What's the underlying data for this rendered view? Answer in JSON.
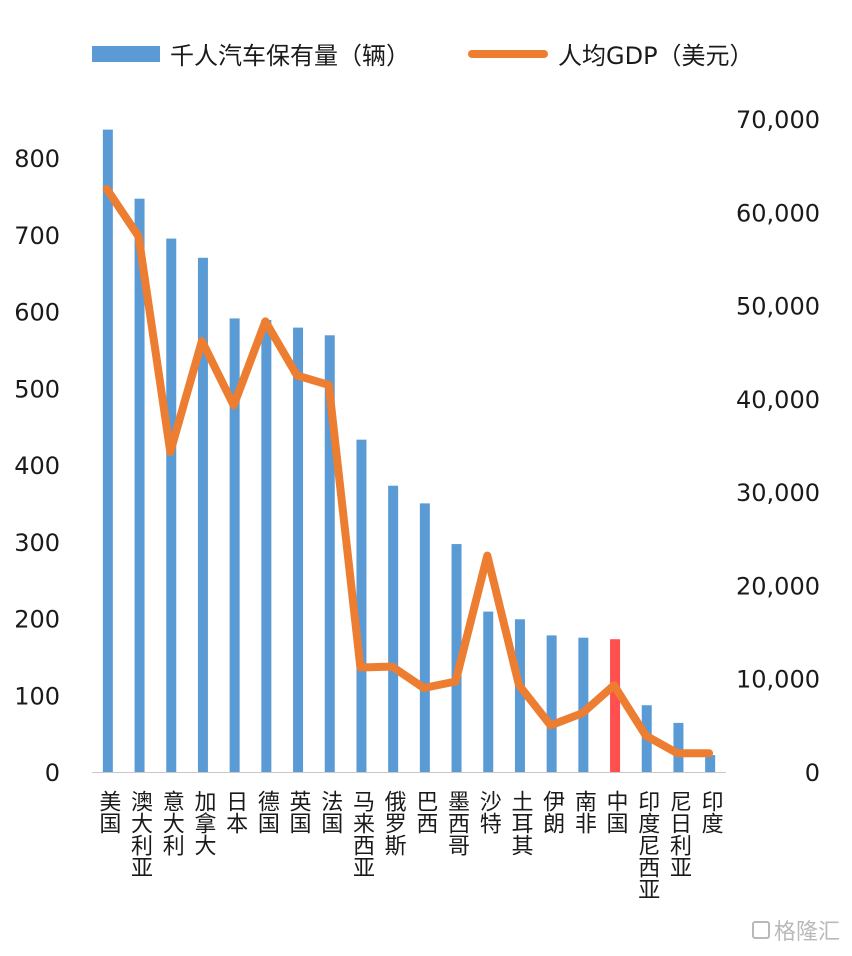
{
  "chart_data": {
    "type": "bar+line",
    "legend": {
      "bar_label": "千人汽车保有量（辆）",
      "line_label": "人均GDP（美元）"
    },
    "categories": [
      "美国",
      "澳大利亚",
      "意大利",
      "加拿大",
      "日本",
      "德国",
      "英国",
      "法国",
      "马来西亚",
      "俄罗斯",
      "巴西",
      "墨西哥",
      "沙特",
      "土耳其",
      "伊朗",
      "南非",
      "中国",
      "印度尼西亚",
      "尼日利亚",
      "印度"
    ],
    "series": [
      {
        "name": "千人汽车保有量（辆）",
        "type": "bar",
        "axis": "left",
        "values": [
          837,
          747,
          695,
          670,
          591,
          589,
          579,
          569,
          433,
          373,
          350,
          297,
          209,
          199,
          178,
          175,
          173,
          87,
          64,
          22
        ]
      },
      {
        "name": "人均GDP（美元）",
        "type": "line",
        "axis": "right",
        "values": [
          62500,
          57400,
          34300,
          46200,
          39300,
          48300,
          42500,
          41500,
          11200,
          11300,
          9000,
          9700,
          23200,
          9300,
          5000,
          6300,
          9300,
          3900,
          2000,
          2000
        ]
      }
    ],
    "highlight_category": "中国",
    "y_left": {
      "min": 0,
      "max": 850,
      "ticks": [
        0,
        100,
        200,
        300,
        400,
        500,
        600,
        700,
        800
      ]
    },
    "y_right": {
      "min": 0,
      "max": 70000,
      "ticks": [
        "0",
        "10,000",
        "20,000",
        "30,000",
        "40,000",
        "50,000",
        "60,000",
        "70,000"
      ],
      "tick_values": [
        0,
        10000,
        20000,
        30000,
        40000,
        50000,
        60000,
        70000
      ]
    },
    "colors": {
      "bar": "#5B9BD5",
      "bar_highlight": "#FF4F4F",
      "line": "#ED7D31",
      "text": "#1a1a1a"
    },
    "legend_position": "top"
  },
  "watermark": {
    "text": "格隆汇"
  }
}
